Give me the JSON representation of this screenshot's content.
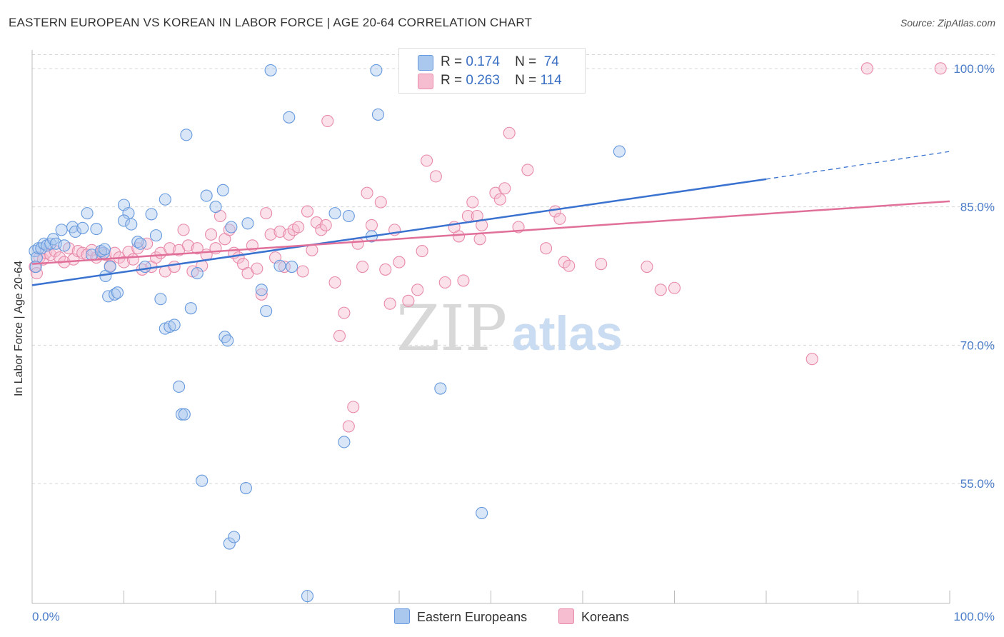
{
  "title": "EASTERN EUROPEAN VS KOREAN IN LABOR FORCE | AGE 20-64 CORRELATION CHART",
  "source": "Source: ZipAtlas.com",
  "watermark": {
    "zip": "ZIP",
    "atlas": "atlas"
  },
  "legend": {
    "rows": [
      {
        "r_label": "R =",
        "r_value": "0.174",
        "n_label": "N =",
        "n_value": "74"
      },
      {
        "r_label": "R =",
        "r_value": "0.263",
        "n_label": "N =",
        "n_value": "114"
      }
    ]
  },
  "bottom_legend": [
    "Eastern Europeans",
    "Koreans"
  ],
  "colors": {
    "blue_fill": "#aac8ee",
    "blue_stroke": "#6699dd",
    "blue_line": "#3a72d0",
    "pink_fill": "#f6bdd0",
    "pink_stroke": "#e88aaa",
    "pink_line": "#e0709a",
    "tick_label": "#4a7cc8"
  },
  "chart_data": {
    "type": "scatter",
    "title": "EASTERN EUROPEAN VS KOREAN IN LABOR FORCE | AGE 20-64 CORRELATION CHART",
    "xlabel": "",
    "ylabel": "In Labor Force | Age 20-64",
    "xlim": [
      0,
      100
    ],
    "ylim": [
      42,
      102
    ],
    "x_tick_labels": [
      "0.0%",
      "100.0%"
    ],
    "y_ticks": [
      55,
      70,
      85,
      100
    ],
    "y_tick_labels": [
      "55.0%",
      "70.0%",
      "85.0%",
      "100.0%"
    ],
    "grid": "horizontal dashed",
    "series": [
      {
        "name": "Eastern Europeans",
        "color": "blue",
        "trend": {
          "x": [
            0,
            80
          ],
          "y": [
            76.5,
            88.0
          ],
          "dashed_to": [
            100,
            91.0
          ]
        },
        "points": [
          [
            0.3,
            80.2
          ],
          [
            0.5,
            79.5
          ],
          [
            0.7,
            80.5
          ],
          [
            0.4,
            78.5
          ],
          [
            1.0,
            80.5
          ],
          [
            1.3,
            81.0
          ],
          [
            1.6,
            80.8
          ],
          [
            2.0,
            81.0
          ],
          [
            2.3,
            81.5
          ],
          [
            2.6,
            81.0
          ],
          [
            3.2,
            82.5
          ],
          [
            3.5,
            80.8
          ],
          [
            4.4,
            82.8
          ],
          [
            4.7,
            82.3
          ],
          [
            5.5,
            82.7
          ],
          [
            6.0,
            84.3
          ],
          [
            6.5,
            79.8
          ],
          [
            7.0,
            82.6
          ],
          [
            7.8,
            80.0
          ],
          [
            7.5,
            80.2
          ],
          [
            8.0,
            77.5
          ],
          [
            8.3,
            75.3
          ],
          [
            9.0,
            75.5
          ],
          [
            9.3,
            75.7
          ],
          [
            8.5,
            78.5
          ],
          [
            10.0,
            85.2
          ],
          [
            10.5,
            84.3
          ],
          [
            10.0,
            83.5
          ],
          [
            10.8,
            83.1
          ],
          [
            11.5,
            81.2
          ],
          [
            11.8,
            81.0
          ],
          [
            12.3,
            78.5
          ],
          [
            13.0,
            84.2
          ],
          [
            13.5,
            81.9
          ],
          [
            14.0,
            75.0
          ],
          [
            14.5,
            71.8
          ],
          [
            15.0,
            72.0
          ],
          [
            15.5,
            72.2
          ],
          [
            16.0,
            65.5
          ],
          [
            16.3,
            62.5
          ],
          [
            16.6,
            62.5
          ],
          [
            17.3,
            74.0
          ],
          [
            16.8,
            92.8
          ],
          [
            14.5,
            85.8
          ],
          [
            18.0,
            77.8
          ],
          [
            18.5,
            55.3
          ],
          [
            19.0,
            86.2
          ],
          [
            20.0,
            85.0
          ],
          [
            20.8,
            86.8
          ],
          [
            21.7,
            82.8
          ],
          [
            21.0,
            70.9
          ],
          [
            21.3,
            70.5
          ],
          [
            21.5,
            48.5
          ],
          [
            22.0,
            49.2
          ],
          [
            23.5,
            83.2
          ],
          [
            23.3,
            54.5
          ],
          [
            25.0,
            76.0
          ],
          [
            25.5,
            73.7
          ],
          [
            26.0,
            99.8
          ],
          [
            27.0,
            78.6
          ],
          [
            28.3,
            78.5
          ],
          [
            28.0,
            94.7
          ],
          [
            30.0,
            42.8
          ],
          [
            33.0,
            84.3
          ],
          [
            34.0,
            59.5
          ],
          [
            34.5,
            84.0
          ],
          [
            37.5,
            99.8
          ],
          [
            37.7,
            95.0
          ],
          [
            37.0,
            81.8
          ],
          [
            44.5,
            65.3
          ],
          [
            49.0,
            51.8
          ],
          [
            59.0,
            99.8
          ],
          [
            64.0,
            91.0
          ],
          [
            7.9,
            80.4
          ]
        ]
      },
      {
        "name": "Koreans",
        "color": "pink",
        "trend": {
          "x": [
            0,
            100
          ],
          "y": [
            78.8,
            85.6
          ]
        },
        "points": [
          [
            0.3,
            78.5
          ],
          [
            0.5,
            77.8
          ],
          [
            0.8,
            79.5
          ],
          [
            1.2,
            79.3
          ],
          [
            1.5,
            80.0
          ],
          [
            2.0,
            79.8
          ],
          [
            2.5,
            80.2
          ],
          [
            3.0,
            79.5
          ],
          [
            3.5,
            79.0
          ],
          [
            4.0,
            80.5
          ],
          [
            4.5,
            79.3
          ],
          [
            5.0,
            80.2
          ],
          [
            5.5,
            80.0
          ],
          [
            6.0,
            79.8
          ],
          [
            6.5,
            80.3
          ],
          [
            7.0,
            79.5
          ],
          [
            7.5,
            80.0
          ],
          [
            8.0,
            79.8
          ],
          [
            8.5,
            78.6
          ],
          [
            9.0,
            80.0
          ],
          [
            9.5,
            79.5
          ],
          [
            10.0,
            79.0
          ],
          [
            10.5,
            80.1
          ],
          [
            11.0,
            79.3
          ],
          [
            11.5,
            80.5
          ],
          [
            12.0,
            78.2
          ],
          [
            12.5,
            81.0
          ],
          [
            13.0,
            78.5
          ],
          [
            13.5,
            79.5
          ],
          [
            14.0,
            80.0
          ],
          [
            14.5,
            78.0
          ],
          [
            15.0,
            80.5
          ],
          [
            15.5,
            78.5
          ],
          [
            16.0,
            80.3
          ],
          [
            16.5,
            82.5
          ],
          [
            17.0,
            80.8
          ],
          [
            17.5,
            78.0
          ],
          [
            18.0,
            80.5
          ],
          [
            18.5,
            78.6
          ],
          [
            19.0,
            79.8
          ],
          [
            19.5,
            82.0
          ],
          [
            20.0,
            80.5
          ],
          [
            20.5,
            84.0
          ],
          [
            21.0,
            81.5
          ],
          [
            21.5,
            82.5
          ],
          [
            22.0,
            80.0
          ],
          [
            22.5,
            79.5
          ],
          [
            23.0,
            78.8
          ],
          [
            23.5,
            77.8
          ],
          [
            24.0,
            80.8
          ],
          [
            24.5,
            78.3
          ],
          [
            25.0,
            75.5
          ],
          [
            25.5,
            84.3
          ],
          [
            26.0,
            82.0
          ],
          [
            26.5,
            79.5
          ],
          [
            27.0,
            82.3
          ],
          [
            27.5,
            78.5
          ],
          [
            28.0,
            82.0
          ],
          [
            28.5,
            82.5
          ],
          [
            29.0,
            82.8
          ],
          [
            29.5,
            78.0
          ],
          [
            30.0,
            84.5
          ],
          [
            30.5,
            80.3
          ],
          [
            31.0,
            83.3
          ],
          [
            31.5,
            82.5
          ],
          [
            32.0,
            83.0
          ],
          [
            32.2,
            94.3
          ],
          [
            33.0,
            76.8
          ],
          [
            34.0,
            73.5
          ],
          [
            33.5,
            71.0
          ],
          [
            35.0,
            63.3
          ],
          [
            34.5,
            61.2
          ],
          [
            35.5,
            81.0
          ],
          [
            36.0,
            78.5
          ],
          [
            36.5,
            86.5
          ],
          [
            37.0,
            83.0
          ],
          [
            38.0,
            85.5
          ],
          [
            38.5,
            78.2
          ],
          [
            39.0,
            74.5
          ],
          [
            39.5,
            82.5
          ],
          [
            40.0,
            79.0
          ],
          [
            41.0,
            74.8
          ],
          [
            42.0,
            76.0
          ],
          [
            42.5,
            80.2
          ],
          [
            43.0,
            90.0
          ],
          [
            44.0,
            88.3
          ],
          [
            45.0,
            76.8
          ],
          [
            46.0,
            82.8
          ],
          [
            46.5,
            81.8
          ],
          [
            47.0,
            77.0
          ],
          [
            47.5,
            84.0
          ],
          [
            48.0,
            85.5
          ],
          [
            48.5,
            84.0
          ],
          [
            48.8,
            81.5
          ],
          [
            49.0,
            83.0
          ],
          [
            50.5,
            86.5
          ],
          [
            51.5,
            87.0
          ],
          [
            51.0,
            85.8
          ],
          [
            52.0,
            93.0
          ],
          [
            53.0,
            82.8
          ],
          [
            54.0,
            89.0
          ],
          [
            56.0,
            80.5
          ],
          [
            57.0,
            84.5
          ],
          [
            57.5,
            83.7
          ],
          [
            58.0,
            79.0
          ],
          [
            58.5,
            78.6
          ],
          [
            62.0,
            78.8
          ],
          [
            67.0,
            78.5
          ],
          [
            68.5,
            76.0
          ],
          [
            70.0,
            76.2
          ],
          [
            85.0,
            68.5
          ],
          [
            91.0,
            100.0
          ],
          [
            99.0,
            100.0
          ],
          [
            41.0,
            100.0
          ]
        ]
      }
    ]
  }
}
